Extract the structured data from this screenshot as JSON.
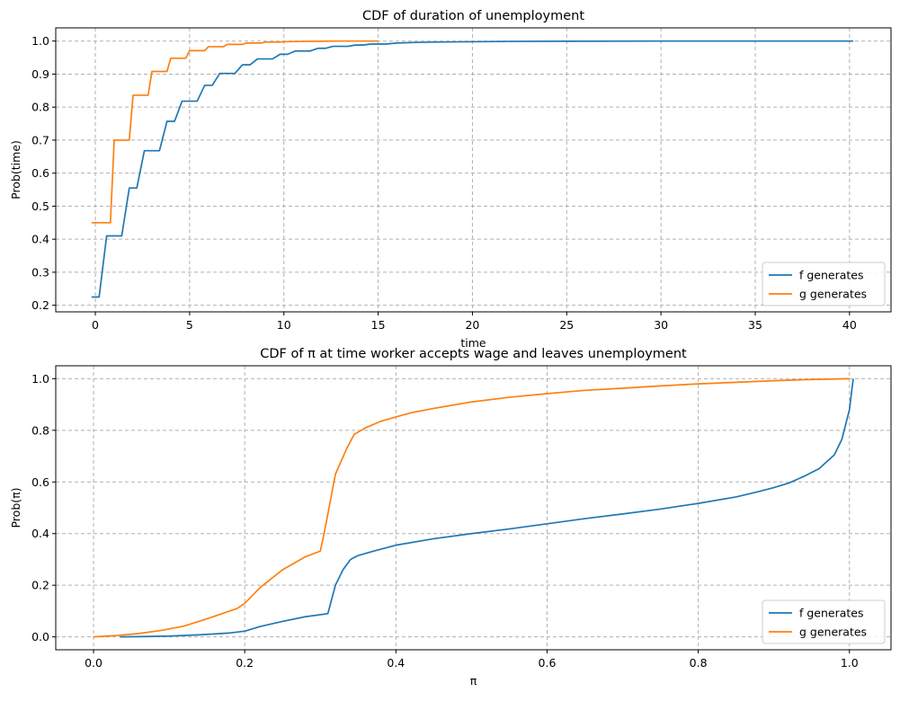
{
  "chart_data": [
    {
      "type": "line",
      "title": "CDF of duration of unemployment",
      "xlabel": "time",
      "ylabel": "Prob(time)",
      "xlim": [
        -2.1,
        42.2
      ],
      "ylim": [
        0.18,
        1.04
      ],
      "xticks": [
        0,
        5,
        10,
        15,
        20,
        25,
        30,
        35,
        40
      ],
      "xtick_labels": [
        "0",
        "5",
        "10",
        "15",
        "20",
        "25",
        "30",
        "35",
        "40"
      ],
      "yticks": [
        0.2,
        0.3,
        0.4,
        0.5,
        0.6,
        0.7,
        0.8,
        0.9,
        1.0
      ],
      "ytick_labels": [
        "0.2",
        "0.3",
        "0.4",
        "0.5",
        "0.6",
        "0.7",
        "0.8",
        "0.9",
        "1.0"
      ],
      "grid": true,
      "legend_position": "lower-right",
      "series": [
        {
          "name": "f generates",
          "color": "#1f77b4",
          "x": [
            -0.2,
            0.2,
            0.6,
            1.4,
            1.8,
            2.2,
            2.6,
            3.4,
            3.8,
            4.2,
            4.6,
            5.4,
            5.8,
            6.2,
            6.6,
            7.4,
            7.8,
            8.2,
            8.6,
            9.4,
            9.8,
            10.2,
            10.6,
            11.4,
            11.8,
            12.2,
            12.6,
            13.4,
            13.8,
            14.2,
            14.6,
            15.4,
            16,
            17,
            18,
            20,
            22,
            25,
            30,
            35,
            40.2
          ],
          "y": [
            0.225,
            0.225,
            0.41,
            0.41,
            0.555,
            0.555,
            0.668,
            0.668,
            0.757,
            0.757,
            0.818,
            0.818,
            0.866,
            0.866,
            0.902,
            0.902,
            0.928,
            0.928,
            0.946,
            0.946,
            0.96,
            0.96,
            0.97,
            0.97,
            0.978,
            0.978,
            0.984,
            0.984,
            0.988,
            0.988,
            0.991,
            0.991,
            0.994,
            0.996,
            0.997,
            0.998,
            0.999,
            0.9995,
            1.0,
            1.0,
            1.0
          ]
        },
        {
          "name": "g generates",
          "color": "#ff7f0e",
          "x": [
            -0.2,
            0.8,
            1.0,
            1.8,
            2.0,
            2.8,
            3.0,
            3.8,
            4.0,
            4.8,
            5.0,
            5.8,
            6.0,
            6.8,
            7.0,
            7.8,
            8.0,
            8.8,
            9.0,
            9.8,
            10.0,
            11,
            12,
            13,
            14,
            15.0
          ],
          "y": [
            0.45,
            0.45,
            0.7,
            0.7,
            0.836,
            0.836,
            0.908,
            0.908,
            0.948,
            0.948,
            0.971,
            0.971,
            0.983,
            0.983,
            0.99,
            0.99,
            0.994,
            0.994,
            0.997,
            0.997,
            0.998,
            0.999,
            0.9995,
            1.0,
            1.0,
            1.0
          ]
        }
      ]
    },
    {
      "type": "line",
      "title": "CDF of π at time worker accepts wage and leaves unemployment",
      "xlabel": "π",
      "ylabel": "Prob(π)",
      "xlim": [
        -0.05,
        1.055
      ],
      "ylim": [
        -0.05,
        1.05
      ],
      "xticks": [
        0.0,
        0.2,
        0.4,
        0.6,
        0.8,
        1.0
      ],
      "xtick_labels": [
        "0.0",
        "0.2",
        "0.4",
        "0.6",
        "0.8",
        "1.0"
      ],
      "yticks": [
        0.0,
        0.2,
        0.4,
        0.6,
        0.8,
        1.0
      ],
      "ytick_labels": [
        "0.0",
        "0.2",
        "0.4",
        "0.6",
        "0.8",
        "1.0"
      ],
      "grid": true,
      "legend_position": "lower-right",
      "series": [
        {
          "name": "f generates",
          "color": "#1f77b4",
          "x": [
            0.035,
            0.06,
            0.1,
            0.14,
            0.18,
            0.2,
            0.22,
            0.25,
            0.28,
            0.31,
            0.32,
            0.33,
            0.34,
            0.35,
            0.37,
            0.4,
            0.45,
            0.5,
            0.55,
            0.6,
            0.65,
            0.7,
            0.75,
            0.8,
            0.85,
            0.88,
            0.9,
            0.92,
            0.94,
            0.96,
            0.98,
            0.99,
            1.0,
            1.005
          ],
          "y": [
            0.0,
            0.001,
            0.003,
            0.008,
            0.015,
            0.022,
            0.04,
            0.06,
            0.078,
            0.09,
            0.2,
            0.26,
            0.3,
            0.315,
            0.332,
            0.355,
            0.38,
            0.4,
            0.418,
            0.438,
            0.458,
            0.476,
            0.495,
            0.517,
            0.542,
            0.563,
            0.578,
            0.596,
            0.622,
            0.652,
            0.705,
            0.765,
            0.88,
            1.0
          ]
        },
        {
          "name": "g generates",
          "color": "#ff7f0e",
          "x": [
            0.0,
            0.03,
            0.06,
            0.09,
            0.12,
            0.15,
            0.17,
            0.19,
            0.2,
            0.22,
            0.25,
            0.28,
            0.3,
            0.305,
            0.32,
            0.335,
            0.345,
            0.36,
            0.38,
            0.4,
            0.42,
            0.45,
            0.5,
            0.55,
            0.6,
            0.65,
            0.7,
            0.75,
            0.8,
            0.85,
            0.9,
            0.95,
            1.0
          ],
          "y": [
            0.0,
            0.005,
            0.013,
            0.025,
            0.042,
            0.07,
            0.09,
            0.11,
            0.13,
            0.19,
            0.26,
            0.31,
            0.332,
            0.4,
            0.63,
            0.73,
            0.785,
            0.81,
            0.835,
            0.852,
            0.868,
            0.885,
            0.91,
            0.928,
            0.942,
            0.955,
            0.963,
            0.972,
            0.98,
            0.986,
            0.992,
            0.997,
            1.0
          ]
        }
      ]
    }
  ]
}
